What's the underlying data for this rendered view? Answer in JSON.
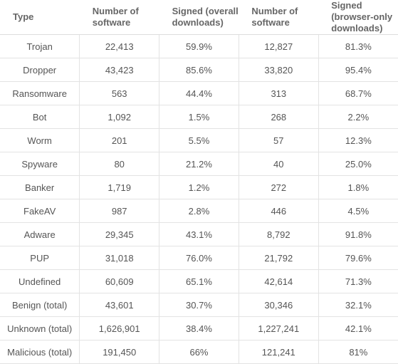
{
  "table": {
    "header": [
      "Type",
      "Number of software",
      "Signed (overall downloads)",
      "Number of software",
      "Signed (browser-only downloads)"
    ],
    "rows": [
      [
        "Trojan",
        "22,413",
        "59.9%",
        "12,827",
        "81.3%"
      ],
      [
        "Dropper",
        "43,423",
        "85.6%",
        "33,820",
        "95.4%"
      ],
      [
        "Ransomware",
        "563",
        "44.4%",
        "313",
        "68.7%"
      ],
      [
        "Bot",
        "1,092",
        "1.5%",
        "268",
        "2.2%"
      ],
      [
        "Worm",
        "201",
        "5.5%",
        "57",
        "12.3%"
      ],
      [
        "Spyware",
        "80",
        "21.2%",
        "40",
        "25.0%"
      ],
      [
        "Banker",
        "1,719",
        "1.2%",
        "272",
        "1.8%"
      ],
      [
        "FakeAV",
        "987",
        "2.8%",
        "446",
        "4.5%"
      ],
      [
        "Adware",
        "29,345",
        "43.1%",
        "8,792",
        "91.8%"
      ],
      [
        "PUP",
        "31,018",
        "76.0%",
        "21,792",
        "79.6%"
      ],
      [
        "Undefined",
        "60,609",
        "65.1%",
        "42,614",
        "71.3%"
      ],
      [
        "Benign (total)",
        "43,601",
        "30.7%",
        "30,346",
        "32.1%"
      ],
      [
        "Unknown (total)",
        "1,626,901",
        "38.4%",
        "1,227,241",
        "42.1%"
      ],
      [
        "Malicious (total)",
        "191,450",
        "66%",
        "121,241",
        "81%"
      ]
    ]
  }
}
